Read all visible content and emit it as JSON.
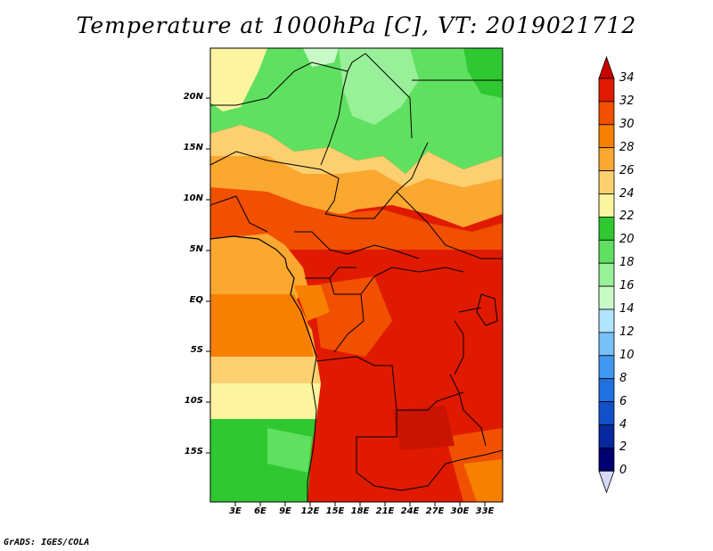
{
  "title": "Temperature at 1000hPa [C], VT: 2019021712",
  "footer": "GrADS: IGES/COLA",
  "map": {
    "lat_labels": [
      "20N",
      "15N",
      "10N",
      "5N",
      "EQ",
      "5S",
      "10S",
      "15S"
    ],
    "lon_labels": [
      "3E",
      "6E",
      "9E",
      "12E",
      "15E",
      "18E",
      "21E",
      "24E",
      "27E",
      "30E",
      "33E"
    ]
  },
  "colorbar": {
    "labels": [
      "34",
      "32",
      "30",
      "28",
      "26",
      "24",
      "22",
      "20",
      "18",
      "16",
      "14",
      "12",
      "10",
      "8",
      "6",
      "4",
      "2",
      "0"
    ],
    "colors": [
      "#a50000",
      "#e01a00",
      "#f05000",
      "#f88000",
      "#fba830",
      "#fcd070",
      "#fdf4a0",
      "#30c830",
      "#60e060",
      "#98f098",
      "#c8fac8",
      "#b0e4ff",
      "#78c0f8",
      "#4098f0",
      "#2070e0",
      "#1050c8",
      "#0828a0",
      "#000070"
    ],
    "top_triangle_color": "#c80000",
    "bottom_triangle_color": "#d8d8f8"
  },
  "legend_ticks": {
    "top_value": 34,
    "step": 2
  }
}
